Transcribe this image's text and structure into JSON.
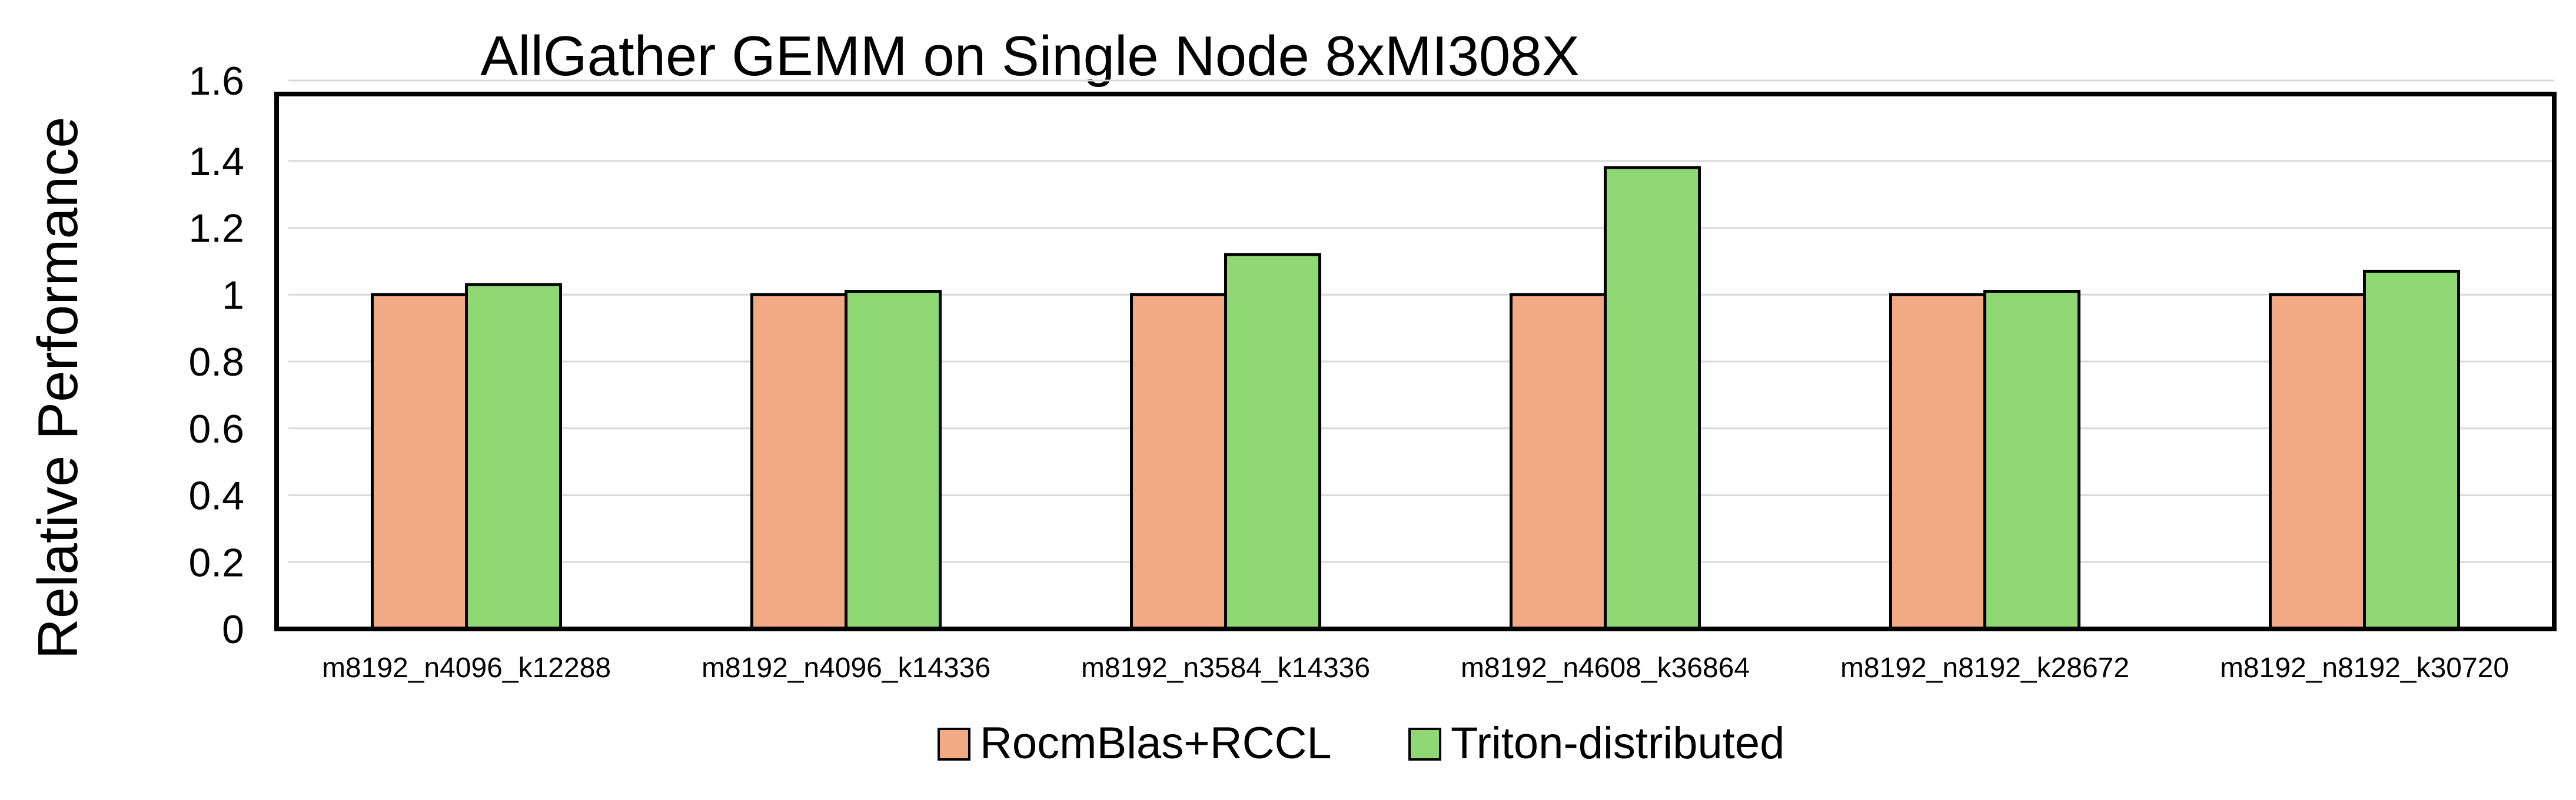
{
  "chart_data": {
    "type": "bar",
    "title": "AllGather GEMM on Single Node  8xMI308X",
    "xlabel": "",
    "ylabel": "Relative Performance",
    "ylim": [
      0,
      1.6
    ],
    "yticks": [
      0,
      0.2,
      0.4,
      0.6,
      0.8,
      1,
      1.2,
      1.4,
      1.6
    ],
    "ytick_labels": [
      "0",
      "0.2",
      "0.4",
      "0.6",
      "0.8",
      "1",
      "1.2",
      "1.4",
      "1.6"
    ],
    "grid": true,
    "legend_position": "bottom",
    "categories": [
      "m8192_n4096_k12288",
      "m8192_n4096_k14336",
      "m8192_n3584_k14336",
      "m8192_n4608_k36864",
      "m8192_n8192_k28672",
      "m8192_n8192_k30720"
    ],
    "series": [
      {
        "name": "RocmBlas+RCCL",
        "color": "#F2AA84",
        "values": [
          1,
          1,
          1,
          1,
          1,
          1
        ]
      },
      {
        "name": "Triton-distributed",
        "color": "#8FD873",
        "values": [
          1.03,
          1.01,
          1.12,
          1.38,
          1.01,
          1.07
        ]
      }
    ]
  }
}
